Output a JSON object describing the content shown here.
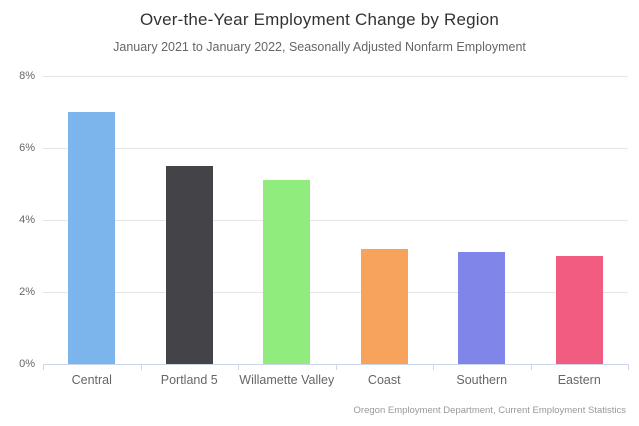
{
  "chart": {
    "title": "Over-the-Year Employment Change by Region",
    "subtitle": "January 2021 to January 2022, Seasonally Adjusted Nonfarm Employment",
    "credits": "Oregon Employment Department, Current Employment Statistics"
  },
  "chart_data": {
    "type": "bar",
    "title": "Over-the-Year Employment Change by Region",
    "subtitle": "January 2021 to January 2022, Seasonally Adjusted Nonfarm Employment",
    "categories": [
      "Central",
      "Portland 5",
      "Willamette Valley",
      "Coast",
      "Southern",
      "Eastern"
    ],
    "values": [
      7.0,
      5.5,
      5.1,
      3.2,
      3.1,
      3.0
    ],
    "unit": "%",
    "xlabel": "",
    "ylabel": "",
    "ylim": [
      0,
      8
    ],
    "ytick_step": 2,
    "ytick_labels": [
      "0%",
      "2%",
      "4%",
      "6%",
      "8%"
    ],
    "grid": true,
    "legend": "none",
    "bar_colors": [
      "#7cb5ec",
      "#434348",
      "#90ed7d",
      "#f7a35c",
      "#8085e9",
      "#f15c80"
    ],
    "style_colors": {
      "title": "#333333",
      "subtitle": "#666666",
      "axis_labels": "#666666",
      "gridline": "#e6e6e6",
      "axis_line": "#ccd6eb",
      "credits": "#999999",
      "background": "#ffffff"
    }
  }
}
